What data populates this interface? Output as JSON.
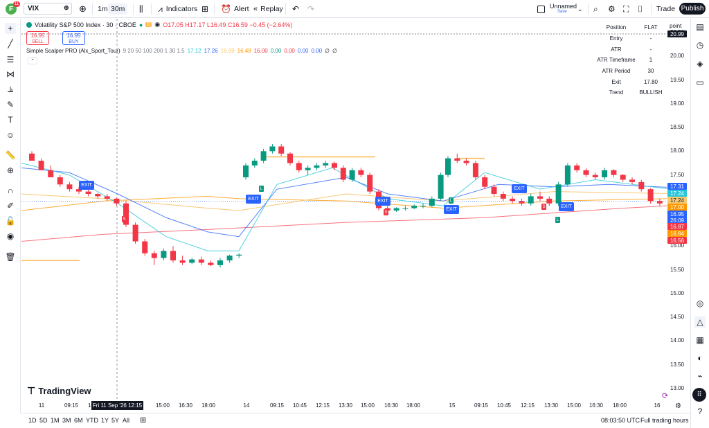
{
  "header": {
    "avatar_letter": "F",
    "avatar_badge": "11",
    "symbol": "VIX",
    "interval_1m": "1m",
    "interval_30m": "30m",
    "indicators": "Indicators",
    "alert": "Alert",
    "replay": "Replay",
    "layout_name": "Unnamed",
    "layout_status": "Save",
    "trade": "Trade",
    "publish": "Publish"
  },
  "legend": {
    "title": "Volatility S&P 500 Index · 30 · CBOE",
    "d_badge": "D",
    "ohlc": "O17.05 H17.17 L16.49 C16.59 −0.45 (−2.64%)",
    "sell_price": "16.95",
    "sell_label": "SELL",
    "buy_price": "16.95",
    "buy_label": "BUY",
    "indicator_name": "Simple Scalper PRO (Alx_Sport_Tour)",
    "indicator_params": "9 20 50 100 200 1 30 1.5",
    "indicator_values": [
      {
        "text": "17.12",
        "color": "#26c6da"
      },
      {
        "text": "17.26",
        "color": "#2962ff"
      },
      {
        "text": "16.99",
        "color": "#f7c873"
      },
      {
        "text": "16.48",
        "color": "#ff9800"
      },
      {
        "text": "16.00",
        "color": "#f23645"
      },
      {
        "text": "0.00",
        "color": "#089981"
      },
      {
        "text": "0.00",
        "color": "#f23645"
      },
      {
        "text": "0.00",
        "color": "#2962ff"
      },
      {
        "text": "0.00",
        "color": "#2962ff"
      },
      {
        "text": "∅",
        "color": "#131722"
      },
      {
        "text": "∅",
        "color": "#131722"
      }
    ]
  },
  "info_table": [
    {
      "key": "Position",
      "value": "FLAT"
    },
    {
      "key": "Entry",
      "value": "-"
    },
    {
      "key": "ATR",
      "value": "-"
    },
    {
      "key": "ATR Timeframe",
      "value": "1"
    },
    {
      "key": "ATR Period",
      "value": "30"
    },
    {
      "key": "Exit",
      "value": "17.80"
    },
    {
      "key": "Trend",
      "value": "BULLISH"
    }
  ],
  "price_axis": {
    "unit": "point",
    "ticks": [
      "20.50",
      "20.00",
      "19.50",
      "19.00",
      "18.50",
      "18.00",
      "17.50",
      "16.50",
      "16.00",
      "15.50",
      "15.00",
      "14.50",
      "14.00",
      "13.50",
      "13.00"
    ],
    "labels": [
      {
        "text": "20.99",
        "color": "#131722",
        "price": 20.99
      },
      {
        "text": "17.31",
        "color": "#2962ff",
        "price": 17.31
      },
      {
        "text": "17.24",
        "color": "#26c6da",
        "price": 17.21
      },
      {
        "text": "17.24",
        "color": "#f7c873",
        "price": 17.11
      },
      {
        "text": "17.00",
        "color": "#ff9800",
        "price": 17.0
      },
      {
        "text": "16.95",
        "color": "#2962ff",
        "price": 16.9
      },
      {
        "text": "26:09",
        "color": "#2962ff",
        "price": 16.78
      },
      {
        "text": "16.87",
        "color": "#f23645",
        "price": 16.64
      },
      {
        "text": "16.84",
        "color": "#ff9800",
        "price": 16.53
      },
      {
        "text": "16.56",
        "color": "#f23645",
        "price": 16.41
      }
    ]
  },
  "time_axis": {
    "labels": [
      "11",
      "09:15",
      "10:45",
      "15:00",
      "16:30",
      "18:00",
      "14",
      "09:15",
      "10:45",
      "12:15",
      "13:30",
      "15:00",
      "16:30",
      "18:00",
      "15",
      "09:15",
      "10:45",
      "12:15",
      "13:30",
      "15:00",
      "16:30",
      "18:00",
      "16"
    ],
    "crosshair": "Fri 11 Sep '26   12:15"
  },
  "bottom": {
    "ranges": [
      "1D",
      "5D",
      "1M",
      "3M",
      "6M",
      "YTD",
      "1Y",
      "5Y",
      "All"
    ],
    "clock": "08:03:50 UTC",
    "session": "Full trading hours",
    "brand": "TradingView"
  },
  "markers": {
    "exit_label": "EXIT",
    "sell_mark": "S",
    "long_mark": "L"
  },
  "chart_data": {
    "type": "candlestick",
    "ylim": [
      12.8,
      21.2
    ],
    "candles": [
      [
        17.95,
        18.0,
        17.8,
        17.8
      ],
      [
        17.8,
        17.85,
        17.6,
        17.6
      ],
      [
        17.6,
        17.7,
        17.45,
        17.45
      ],
      [
        17.45,
        17.5,
        17.25,
        17.3
      ],
      [
        17.3,
        17.35,
        17.15,
        17.2
      ],
      [
        17.2,
        17.25,
        17.1,
        17.15
      ],
      [
        17.15,
        17.2,
        17.05,
        17.1
      ],
      [
        17.1,
        17.12,
        17.0,
        17.05
      ],
      [
        17.05,
        17.1,
        16.95,
        17.0
      ],
      [
        17.0,
        17.02,
        16.85,
        16.9
      ],
      [
        16.9,
        16.95,
        16.4,
        16.45
      ],
      [
        16.45,
        16.5,
        16.05,
        16.1
      ],
      [
        16.1,
        16.15,
        15.8,
        15.85
      ],
      [
        15.85,
        15.9,
        15.6,
        15.75
      ],
      [
        15.75,
        15.95,
        15.7,
        15.9
      ],
      [
        15.9,
        16.0,
        15.65,
        15.7
      ],
      [
        15.7,
        15.8,
        15.6,
        15.65
      ],
      [
        15.65,
        15.75,
        15.62,
        15.72
      ],
      [
        15.72,
        15.78,
        15.6,
        15.65
      ],
      [
        15.65,
        15.7,
        15.58,
        15.6
      ],
      [
        15.6,
        15.75,
        15.55,
        15.7
      ],
      [
        15.7,
        15.82,
        15.65,
        15.8
      ],
      [
        15.8,
        15.85,
        15.75,
        15.82
      ],
      [
        17.45,
        17.75,
        17.4,
        17.7
      ],
      [
        17.7,
        17.85,
        17.65,
        17.8
      ],
      [
        17.8,
        18.05,
        17.75,
        18.0
      ],
      [
        18.0,
        18.15,
        17.95,
        18.1
      ],
      [
        18.1,
        18.15,
        17.9,
        17.95
      ],
      [
        17.95,
        17.98,
        17.7,
        17.75
      ],
      [
        17.75,
        17.8,
        17.55,
        17.6
      ],
      [
        17.6,
        17.7,
        17.5,
        17.65
      ],
      [
        17.65,
        17.75,
        17.6,
        17.7
      ],
      [
        17.7,
        17.8,
        17.65,
        17.75
      ],
      [
        17.75,
        17.78,
        17.6,
        17.65
      ],
      [
        17.65,
        17.7,
        17.35,
        17.4
      ],
      [
        17.4,
        17.65,
        17.35,
        17.6
      ],
      [
        17.6,
        17.65,
        17.45,
        17.5
      ],
      [
        17.5,
        17.55,
        17.1,
        17.15
      ],
      [
        17.15,
        17.2,
        16.75,
        16.8
      ],
      [
        16.8,
        16.85,
        16.7,
        16.75
      ],
      [
        16.75,
        16.82,
        16.72,
        16.8
      ],
      [
        16.8,
        16.85,
        16.75,
        16.8
      ],
      [
        16.8,
        16.88,
        16.78,
        16.85
      ],
      [
        16.85,
        16.9,
        16.8,
        16.85
      ],
      [
        16.85,
        17.05,
        16.82,
        17.0
      ],
      [
        17.0,
        17.55,
        16.95,
        17.5
      ],
      [
        17.5,
        17.9,
        17.45,
        17.85
      ],
      [
        17.85,
        17.95,
        17.75,
        17.8
      ],
      [
        17.8,
        17.85,
        17.7,
        17.75
      ],
      [
        17.75,
        17.8,
        17.4,
        17.45
      ],
      [
        17.45,
        17.5,
        17.2,
        17.25
      ],
      [
        17.25,
        17.3,
        17.05,
        17.1
      ],
      [
        17.1,
        17.15,
        16.95,
        17.0
      ],
      [
        17.0,
        17.05,
        16.9,
        16.95
      ],
      [
        16.95,
        17.0,
        16.85,
        16.9
      ],
      [
        16.9,
        17.1,
        16.85,
        17.05
      ],
      [
        17.05,
        17.15,
        16.95,
        17.0
      ],
      [
        17.0,
        17.05,
        16.85,
        16.9
      ],
      [
        16.9,
        17.35,
        16.85,
        17.3
      ],
      [
        17.3,
        17.75,
        17.25,
        17.7
      ],
      [
        17.7,
        17.75,
        17.55,
        17.6
      ],
      [
        17.6,
        17.65,
        17.45,
        17.5
      ],
      [
        17.5,
        17.55,
        17.4,
        17.45
      ],
      [
        17.45,
        17.65,
        17.4,
        17.6
      ],
      [
        17.6,
        17.62,
        17.45,
        17.5
      ],
      [
        17.5,
        17.52,
        17.35,
        17.4
      ],
      [
        17.4,
        17.45,
        17.3,
        17.35
      ],
      [
        17.35,
        17.4,
        17.15,
        17.2
      ],
      [
        17.2,
        17.22,
        16.9,
        16.95
      ],
      [
        16.95,
        17.0,
        16.85,
        16.9
      ]
    ]
  }
}
